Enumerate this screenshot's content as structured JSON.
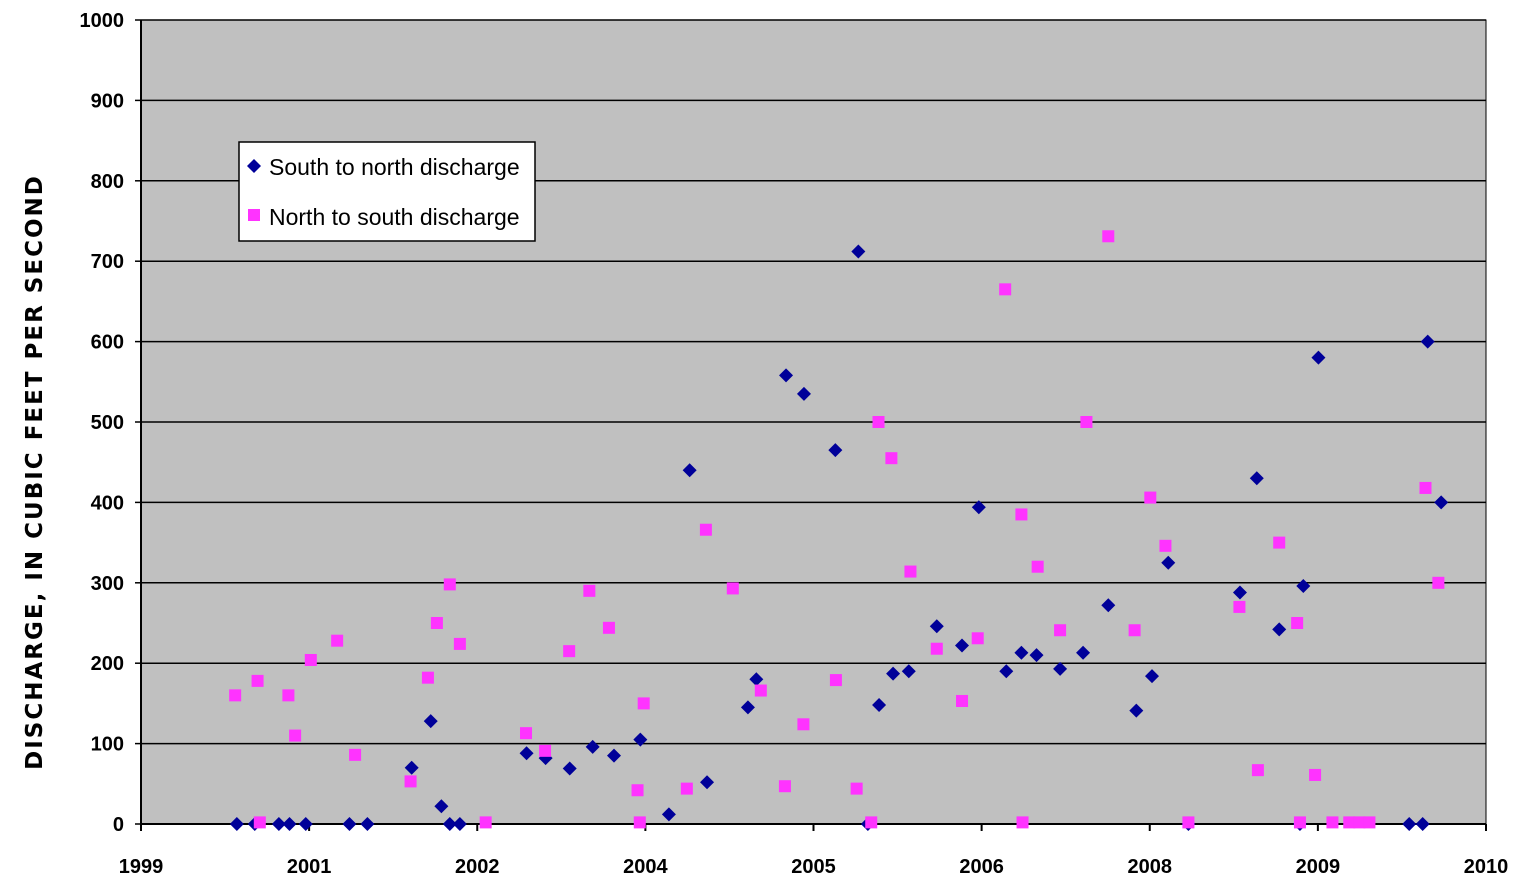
{
  "chart_data": {
    "type": "scatter",
    "title": "",
    "xlabel": "",
    "ylabel": "DISCHARGE, IN CUBIC FEET PER SECOND",
    "ylim": [
      0,
      1000
    ],
    "y_ticks": [
      "0",
      "100",
      "200",
      "300",
      "400",
      "500",
      "600",
      "700",
      "800",
      "900",
      "1000"
    ],
    "x_ticks": [
      "1999",
      "2001",
      "2002",
      "2004",
      "2005",
      "2006",
      "2008",
      "2009",
      "2010"
    ],
    "grid": true,
    "legend_position": "top-left",
    "plot_background": "#c0c0c0",
    "series": [
      {
        "name": "South to north discharge",
        "marker": "diamond",
        "color": "#000099",
        "values": [
          [
            1.71,
            0
          ],
          [
            2.03,
            0
          ],
          [
            2.46,
            0
          ],
          [
            2.65,
            0
          ],
          [
            2.94,
            0
          ],
          [
            3.72,
            0
          ],
          [
            4.04,
            0
          ],
          [
            4.83,
            70
          ],
          [
            5.17,
            128
          ],
          [
            5.36,
            22
          ],
          [
            5.51,
            0
          ],
          [
            5.69,
            0
          ],
          [
            6.88,
            88
          ],
          [
            7.22,
            82
          ],
          [
            7.65,
            69
          ],
          [
            8.06,
            96
          ],
          [
            8.44,
            85
          ],
          [
            8.91,
            105
          ],
          [
            9.42,
            12
          ],
          [
            9.79,
            440
          ],
          [
            10.1,
            52
          ],
          [
            10.83,
            145
          ],
          [
            10.98,
            180
          ],
          [
            11.51,
            558
          ],
          [
            11.83,
            535
          ],
          [
            12.39,
            465
          ],
          [
            12.8,
            712
          ],
          [
            12.97,
            0
          ],
          [
            13.17,
            148
          ],
          [
            13.42,
            187
          ],
          [
            13.7,
            190
          ],
          [
            14.2,
            246
          ],
          [
            14.65,
            222
          ],
          [
            14.95,
            394
          ],
          [
            15.44,
            190
          ],
          [
            15.71,
            213
          ],
          [
            15.98,
            210
          ],
          [
            16.4,
            193
          ],
          [
            16.81,
            213
          ],
          [
            17.26,
            272
          ],
          [
            17.76,
            141
          ],
          [
            18.04,
            184
          ],
          [
            18.33,
            325
          ],
          [
            18.69,
            0
          ],
          [
            19.61,
            288
          ],
          [
            19.91,
            430
          ],
          [
            20.31,
            242
          ],
          [
            20.68,
            0
          ],
          [
            20.74,
            296
          ],
          [
            21.01,
            580
          ],
          [
            22.63,
            0
          ],
          [
            22.87,
            0
          ],
          [
            22.96,
            600
          ],
          [
            23.2,
            400
          ]
        ]
      },
      {
        "name": "North to south discharge",
        "marker": "square",
        "color": "#ff33ff",
        "values": [
          [
            1.68,
            160
          ],
          [
            2.08,
            178
          ],
          [
            2.12,
            2
          ],
          [
            2.63,
            160
          ],
          [
            2.75,
            110
          ],
          [
            3.03,
            204
          ],
          [
            3.5,
            228
          ],
          [
            3.82,
            86
          ],
          [
            4.81,
            53
          ],
          [
            5.12,
            182
          ],
          [
            5.28,
            250
          ],
          [
            5.51,
            298
          ],
          [
            5.69,
            224
          ],
          [
            6.15,
            2
          ],
          [
            6.87,
            113
          ],
          [
            7.21,
            91
          ],
          [
            7.64,
            215
          ],
          [
            8.0,
            290
          ],
          [
            8.35,
            244
          ],
          [
            8.86,
            42
          ],
          [
            8.9,
            2
          ],
          [
            8.97,
            150
          ],
          [
            9.74,
            44
          ],
          [
            10.08,
            366
          ],
          [
            10.56,
            293
          ],
          [
            11.06,
            166
          ],
          [
            11.49,
            47
          ],
          [
            11.82,
            124
          ],
          [
            12.4,
            179
          ],
          [
            12.77,
            44
          ],
          [
            13.03,
            2
          ],
          [
            13.16,
            500
          ],
          [
            13.39,
            455
          ],
          [
            13.73,
            314
          ],
          [
            14.2,
            218
          ],
          [
            14.65,
            153
          ],
          [
            14.93,
            231
          ],
          [
            15.42,
            665
          ],
          [
            15.71,
            385
          ],
          [
            15.73,
            2
          ],
          [
            16.0,
            320
          ],
          [
            16.4,
            241
          ],
          [
            16.87,
            500
          ],
          [
            17.26,
            731
          ],
          [
            17.73,
            241
          ],
          [
            18.01,
            406
          ],
          [
            18.28,
            346
          ],
          [
            18.69,
            2
          ],
          [
            19.6,
            270
          ],
          [
            19.93,
            67
          ],
          [
            20.31,
            350
          ],
          [
            20.63,
            250
          ],
          [
            20.68,
            2
          ],
          [
            20.95,
            61
          ],
          [
            21.26,
            2
          ],
          [
            21.56,
            2
          ],
          [
            21.74,
            2
          ],
          [
            21.92,
            2
          ],
          [
            22.92,
            418
          ],
          [
            23.15,
            300
          ]
        ]
      }
    ]
  }
}
